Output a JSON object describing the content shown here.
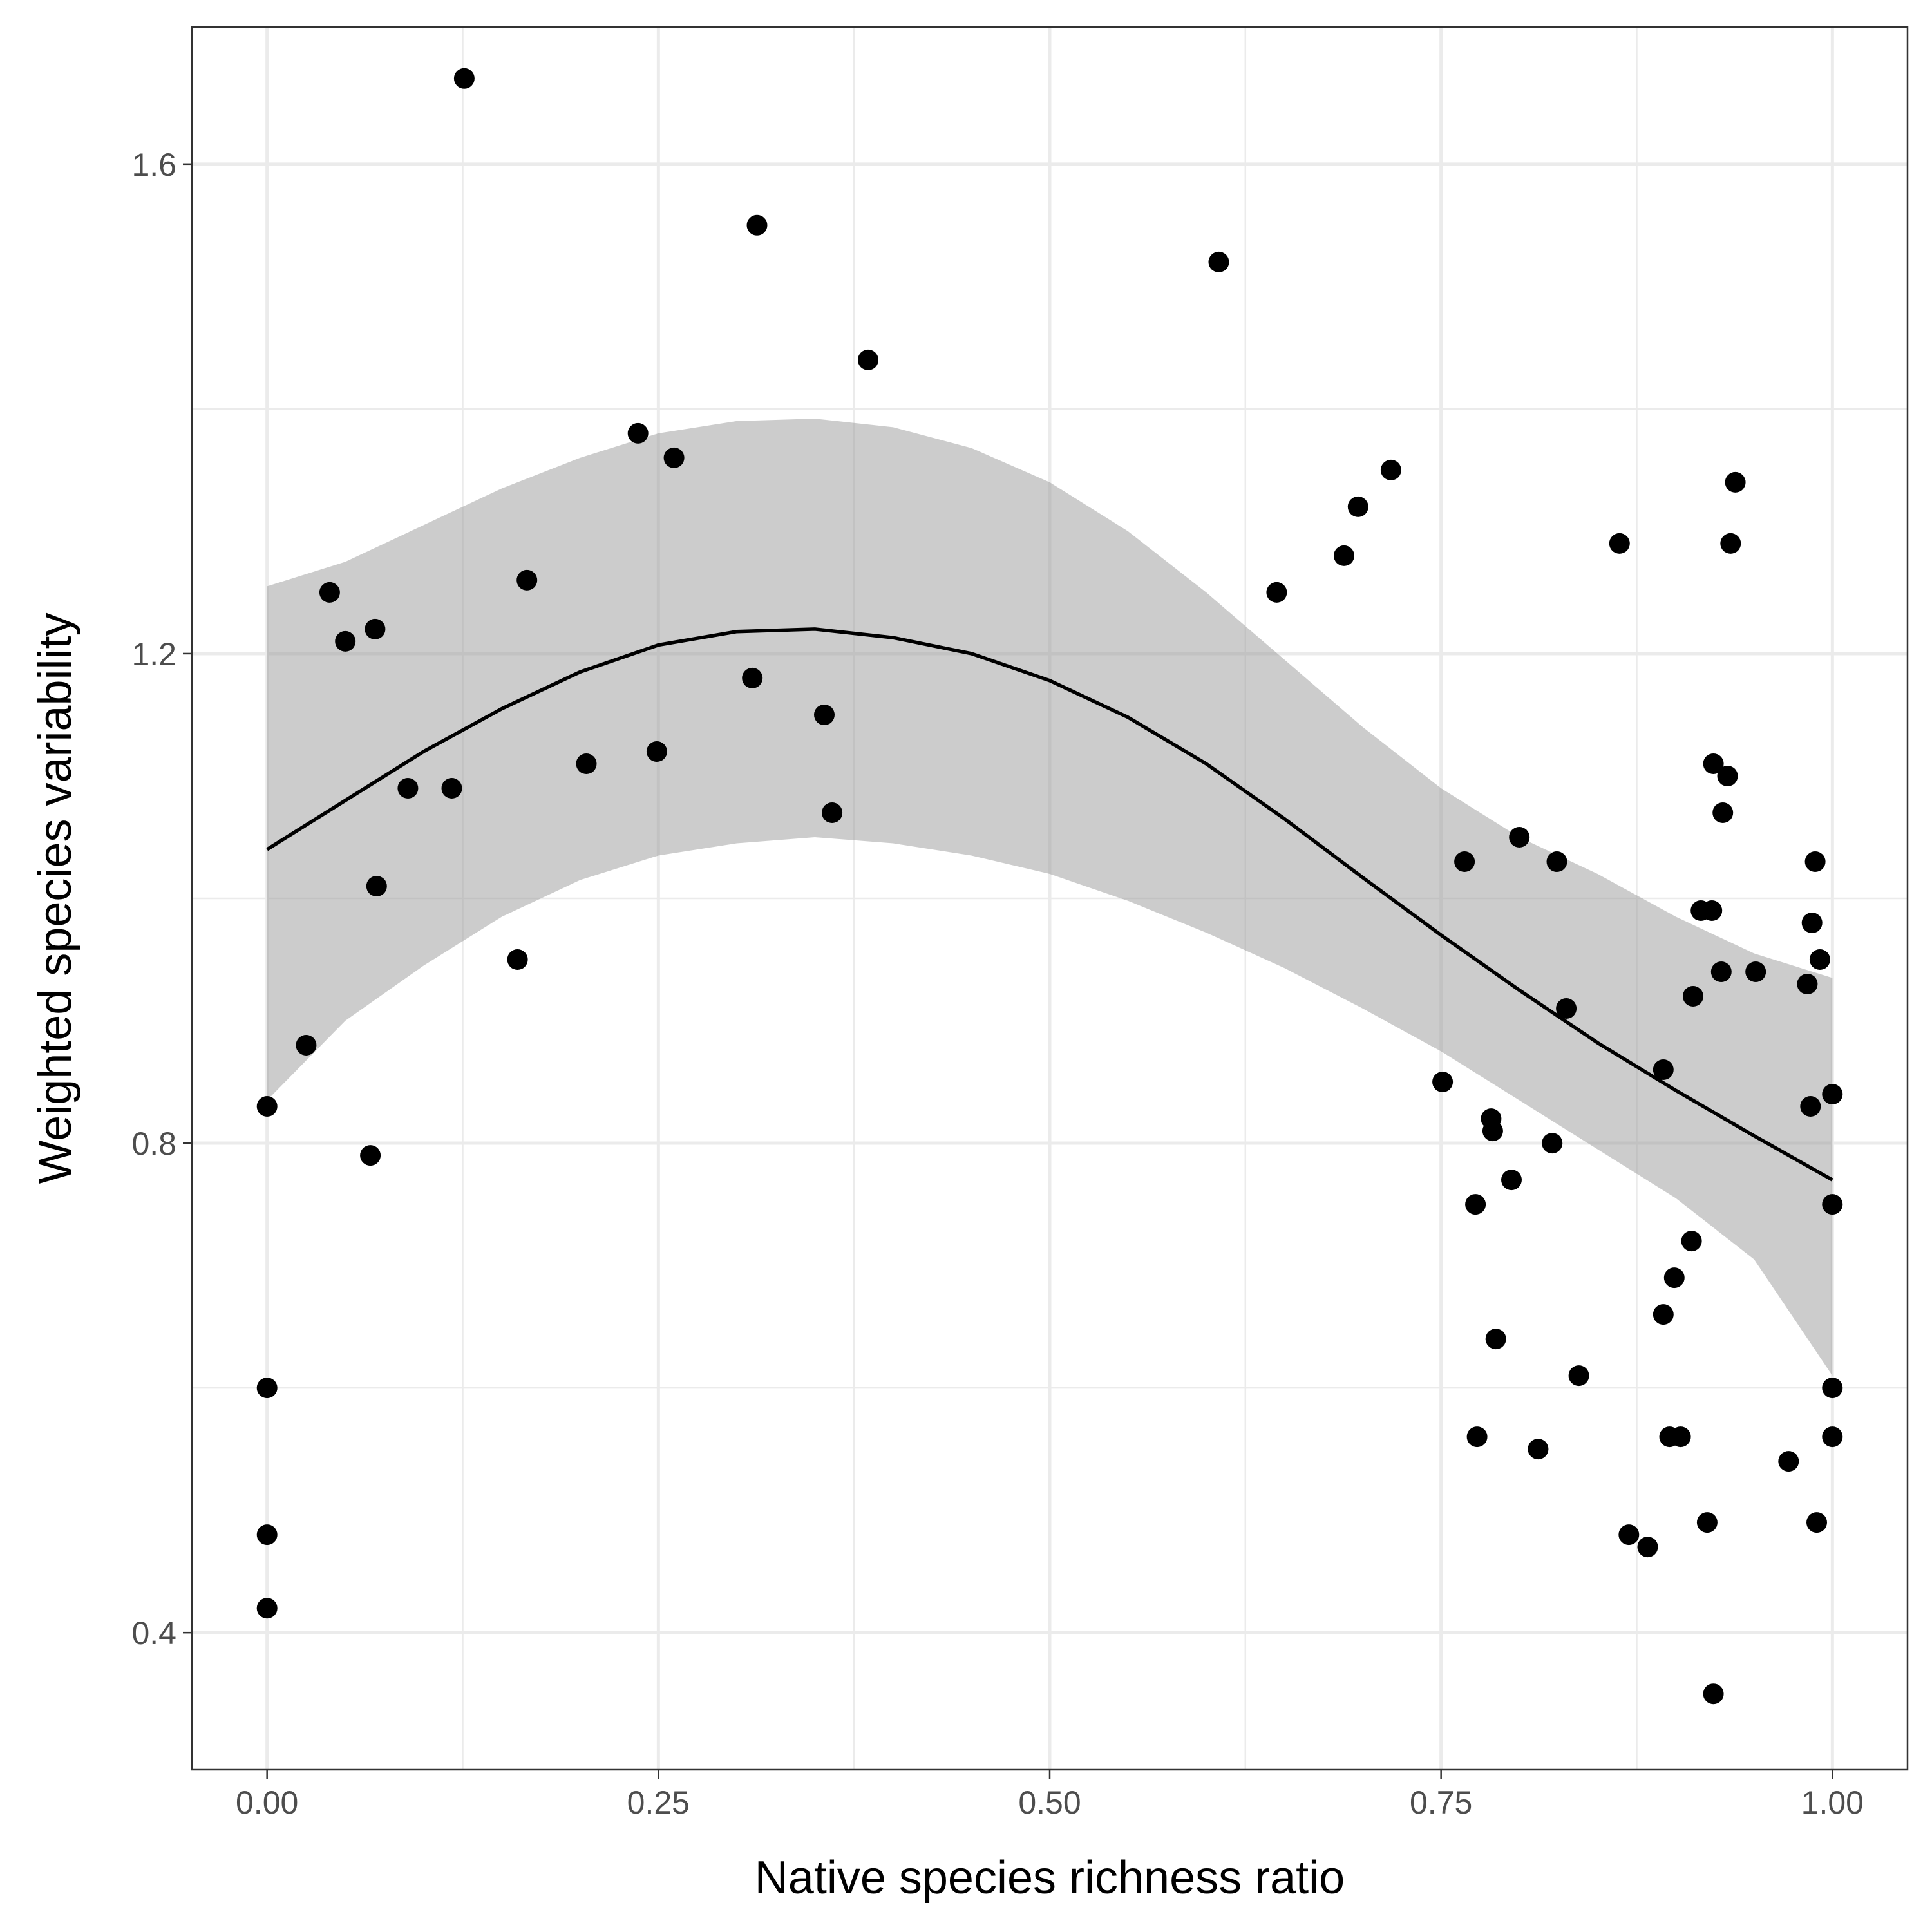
{
  "chart_data": {
    "type": "scatter",
    "title": "",
    "xlabel": "Native species richness ratio",
    "ylabel": "Weighted species variability",
    "xlim": [
      -0.048,
      1.048
    ],
    "ylim": [
      0.288,
      1.712
    ],
    "x_ticks": [
      0,
      0.25,
      0.5,
      0.75,
      1
    ],
    "x_tick_labels": [
      "0.00",
      "0.25",
      "0.50",
      "0.75",
      "1.00"
    ],
    "y_ticks": [
      0.4,
      0.8,
      1.2,
      1.6
    ],
    "y_tick_labels": [
      "0.4",
      "0.8",
      "1.2",
      "1.6"
    ],
    "grid": true,
    "points": [
      {
        "x": 0.0,
        "y": 0.83
      },
      {
        "x": 0.0,
        "y": 0.6
      },
      {
        "x": 0.0,
        "y": 0.48
      },
      {
        "x": 0.0,
        "y": 0.42
      },
      {
        "x": 0.025,
        "y": 0.88
      },
      {
        "x": 0.04,
        "y": 1.25
      },
      {
        "x": 0.05,
        "y": 1.21
      },
      {
        "x": 0.066,
        "y": 0.79
      },
      {
        "x": 0.069,
        "y": 1.22
      },
      {
        "x": 0.07,
        "y": 1.01
      },
      {
        "x": 0.09,
        "y": 1.09
      },
      {
        "x": 0.118,
        "y": 1.09
      },
      {
        "x": 0.126,
        "y": 1.67
      },
      {
        "x": 0.16,
        "y": 0.95
      },
      {
        "x": 0.166,
        "y": 1.26
      },
      {
        "x": 0.204,
        "y": 1.11
      },
      {
        "x": 0.237,
        "y": 1.38
      },
      {
        "x": 0.249,
        "y": 1.12
      },
      {
        "x": 0.26,
        "y": 1.36
      },
      {
        "x": 0.31,
        "y": 1.18
      },
      {
        "x": 0.313,
        "y": 1.55
      },
      {
        "x": 0.356,
        "y": 1.15
      },
      {
        "x": 0.361,
        "y": 1.07
      },
      {
        "x": 0.384,
        "y": 1.44
      },
      {
        "x": 0.608,
        "y": 1.52
      },
      {
        "x": 0.645,
        "y": 1.25
      },
      {
        "x": 0.688,
        "y": 1.28
      },
      {
        "x": 0.697,
        "y": 1.32
      },
      {
        "x": 0.718,
        "y": 1.35
      },
      {
        "x": 0.751,
        "y": 0.85
      },
      {
        "x": 0.765,
        "y": 1.03
      },
      {
        "x": 0.772,
        "y": 0.75
      },
      {
        "x": 0.773,
        "y": 0.56
      },
      {
        "x": 0.782,
        "y": 0.82
      },
      {
        "x": 0.783,
        "y": 0.81
      },
      {
        "x": 0.785,
        "y": 0.64
      },
      {
        "x": 0.795,
        "y": 0.77
      },
      {
        "x": 0.8,
        "y": 1.05
      },
      {
        "x": 0.812,
        "y": 0.55
      },
      {
        "x": 0.821,
        "y": 0.8
      },
      {
        "x": 0.824,
        "y": 1.03
      },
      {
        "x": 0.83,
        "y": 0.91
      },
      {
        "x": 0.838,
        "y": 0.61
      },
      {
        "x": 0.864,
        "y": 1.29
      },
      {
        "x": 0.87,
        "y": 0.48
      },
      {
        "x": 0.882,
        "y": 0.47
      },
      {
        "x": 0.892,
        "y": 0.86
      },
      {
        "x": 0.892,
        "y": 0.66
      },
      {
        "x": 0.896,
        "y": 0.56
      },
      {
        "x": 0.899,
        "y": 0.69
      },
      {
        "x": 0.903,
        "y": 0.56
      },
      {
        "x": 0.91,
        "y": 0.72
      },
      {
        "x": 0.911,
        "y": 0.92
      },
      {
        "x": 0.916,
        "y": 0.99
      },
      {
        "x": 0.92,
        "y": 0.49
      },
      {
        "x": 0.923,
        "y": 0.99
      },
      {
        "x": 0.924,
        "y": 1.11
      },
      {
        "x": 0.924,
        "y": 0.35
      },
      {
        "x": 0.929,
        "y": 0.94
      },
      {
        "x": 0.93,
        "y": 1.07
      },
      {
        "x": 0.933,
        "y": 1.1
      },
      {
        "x": 0.935,
        "y": 1.29
      },
      {
        "x": 0.938,
        "y": 1.34
      },
      {
        "x": 0.951,
        "y": 0.94
      },
      {
        "x": 0.972,
        "y": 0.54
      },
      {
        "x": 0.984,
        "y": 0.93
      },
      {
        "x": 0.986,
        "y": 0.83
      },
      {
        "x": 0.987,
        "y": 0.98
      },
      {
        "x": 0.989,
        "y": 1.03
      },
      {
        "x": 0.99,
        "y": 0.49
      },
      {
        "x": 0.992,
        "y": 0.95
      },
      {
        "x": 1.0,
        "y": 0.84
      },
      {
        "x": 1.0,
        "y": 0.75
      },
      {
        "x": 1.0,
        "y": 0.6
      },
      {
        "x": 1.0,
        "y": 0.56
      }
    ],
    "smooth": {
      "x": [
        0.0,
        0.05,
        0.1,
        0.15,
        0.2,
        0.25,
        0.3,
        0.35,
        0.4,
        0.45,
        0.5,
        0.55,
        0.6,
        0.65,
        0.7,
        0.75,
        0.8,
        0.85,
        0.9,
        0.95,
        1.0
      ],
      "y": [
        1.04,
        1.08,
        1.12,
        1.155,
        1.185,
        1.207,
        1.218,
        1.22,
        1.213,
        1.2,
        1.178,
        1.148,
        1.11,
        1.065,
        1.017,
        0.97,
        0.925,
        0.882,
        0.843,
        0.806,
        0.77
      ],
      "upper": [
        1.255,
        1.275,
        1.305,
        1.335,
        1.36,
        1.38,
        1.39,
        1.392,
        1.385,
        1.368,
        1.34,
        1.3,
        1.25,
        1.195,
        1.14,
        1.09,
        1.05,
        1.02,
        0.985,
        0.955,
        0.935
      ],
      "lower": [
        0.835,
        0.9,
        0.945,
        0.985,
        1.015,
        1.035,
        1.045,
        1.05,
        1.045,
        1.035,
        1.02,
        0.998,
        0.972,
        0.943,
        0.91,
        0.875,
        0.835,
        0.795,
        0.755,
        0.705,
        0.61
      ]
    }
  }
}
